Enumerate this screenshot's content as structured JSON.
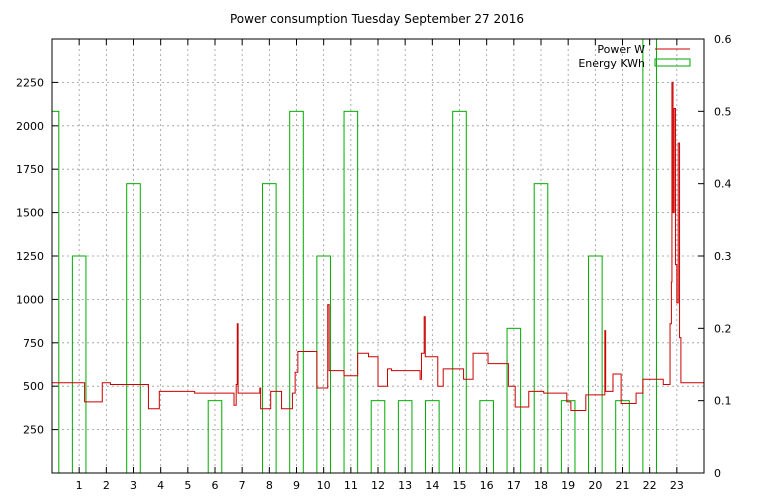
{
  "chart_data": {
    "type": "line",
    "title": "Power consumption Tuesday September 27 2016",
    "xlabel": "",
    "ylabel": "",
    "y2label": "",
    "xlim": [
      0,
      24
    ],
    "x_ticks": [
      1,
      2,
      3,
      4,
      5,
      6,
      7,
      8,
      9,
      10,
      11,
      12,
      13,
      14,
      15,
      16,
      17,
      18,
      19,
      20,
      21,
      22,
      23
    ],
    "ylim": [
      0,
      2500
    ],
    "y_ticks": [
      250,
      500,
      750,
      1000,
      1250,
      1500,
      1750,
      2000,
      2250
    ],
    "y2lim": [
      0,
      0.6
    ],
    "y2_ticks": [
      0,
      0.1,
      0.2,
      0.3,
      0.4,
      0.5,
      0.6
    ],
    "grid": true,
    "legend_position": "top-right",
    "series": [
      {
        "name": "Power W",
        "axis": "left",
        "style": "step-line",
        "color": "#cc0000",
        "points": [
          [
            0,
            520
          ],
          [
            1.2,
            520
          ],
          [
            1.2,
            410
          ],
          [
            1.85,
            410
          ],
          [
            1.85,
            520
          ],
          [
            2.15,
            520
          ],
          [
            2.15,
            510
          ],
          [
            3.55,
            510
          ],
          [
            3.55,
            370
          ],
          [
            3.95,
            370
          ],
          [
            3.95,
            470
          ],
          [
            5.25,
            470
          ],
          [
            5.25,
            460
          ],
          [
            6.7,
            460
          ],
          [
            6.7,
            390
          ],
          [
            6.78,
            390
          ],
          [
            6.78,
            510
          ],
          [
            6.82,
            510
          ],
          [
            6.82,
            860
          ],
          [
            6.85,
            860
          ],
          [
            6.85,
            460
          ],
          [
            7.65,
            460
          ],
          [
            7.65,
            490
          ],
          [
            7.68,
            490
          ],
          [
            7.68,
            370
          ],
          [
            8.05,
            370
          ],
          [
            8.05,
            470
          ],
          [
            8.45,
            470
          ],
          [
            8.45,
            370
          ],
          [
            8.85,
            370
          ],
          [
            8.85,
            460
          ],
          [
            8.95,
            460
          ],
          [
            8.95,
            580
          ],
          [
            9.05,
            580
          ],
          [
            9.05,
            700
          ],
          [
            9.75,
            700
          ],
          [
            9.75,
            490
          ],
          [
            10.15,
            490
          ],
          [
            10.15,
            970
          ],
          [
            10.2,
            970
          ],
          [
            10.2,
            590
          ],
          [
            10.75,
            590
          ],
          [
            10.75,
            560
          ],
          [
            11.25,
            560
          ],
          [
            11.25,
            690
          ],
          [
            11.65,
            690
          ],
          [
            11.65,
            670
          ],
          [
            12.0,
            670
          ],
          [
            12.0,
            500
          ],
          [
            12.35,
            500
          ],
          [
            12.35,
            600
          ],
          [
            12.5,
            600
          ],
          [
            12.5,
            590
          ],
          [
            13.55,
            590
          ],
          [
            13.55,
            540
          ],
          [
            13.6,
            540
          ],
          [
            13.6,
            690
          ],
          [
            13.7,
            690
          ],
          [
            13.7,
            900
          ],
          [
            13.74,
            900
          ],
          [
            13.74,
            670
          ],
          [
            14.2,
            670
          ],
          [
            14.2,
            500
          ],
          [
            14.4,
            500
          ],
          [
            14.4,
            600
          ],
          [
            15.15,
            600
          ],
          [
            15.15,
            540
          ],
          [
            15.5,
            540
          ],
          [
            15.5,
            690
          ],
          [
            16.05,
            690
          ],
          [
            16.05,
            630
          ],
          [
            16.8,
            630
          ],
          [
            16.8,
            500
          ],
          [
            17.05,
            500
          ],
          [
            17.05,
            380
          ],
          [
            17.55,
            380
          ],
          [
            17.55,
            470
          ],
          [
            18.1,
            470
          ],
          [
            18.1,
            460
          ],
          [
            18.95,
            460
          ],
          [
            18.95,
            410
          ],
          [
            19.1,
            410
          ],
          [
            19.1,
            360
          ],
          [
            19.65,
            360
          ],
          [
            19.65,
            450
          ],
          [
            20.35,
            450
          ],
          [
            20.35,
            820
          ],
          [
            20.38,
            820
          ],
          [
            20.38,
            470
          ],
          [
            20.65,
            470
          ],
          [
            20.65,
            570
          ],
          [
            20.95,
            570
          ],
          [
            20.95,
            400
          ],
          [
            21.5,
            400
          ],
          [
            21.5,
            460
          ],
          [
            21.75,
            460
          ],
          [
            21.75,
            540
          ],
          [
            22.5,
            540
          ],
          [
            22.5,
            510
          ],
          [
            22.75,
            510
          ],
          [
            22.75,
            860
          ],
          [
            22.8,
            860
          ],
          [
            22.8,
            1100
          ],
          [
            22.82,
            1100
          ],
          [
            22.82,
            2250
          ],
          [
            22.86,
            2250
          ],
          [
            22.86,
            1500
          ],
          [
            22.9,
            1500
          ],
          [
            22.9,
            2100
          ],
          [
            22.95,
            2100
          ],
          [
            22.95,
            1200
          ],
          [
            23.0,
            1200
          ],
          [
            23.0,
            980
          ],
          [
            23.05,
            980
          ],
          [
            23.05,
            1900
          ],
          [
            23.1,
            1900
          ],
          [
            23.1,
            780
          ],
          [
            23.15,
            780
          ],
          [
            23.15,
            520
          ],
          [
            24,
            520
          ],
          [
            24,
            480
          ]
        ]
      },
      {
        "name": "Energy KWh",
        "axis": "right",
        "style": "bars",
        "color": "#00aa00",
        "bar_width": 0.5,
        "bars": [
          [
            0,
            0.5
          ],
          [
            1,
            0.3
          ],
          [
            2,
            0
          ],
          [
            3,
            0.4
          ],
          [
            4,
            0
          ],
          [
            5,
            0
          ],
          [
            6,
            0.1
          ],
          [
            7,
            0
          ],
          [
            8,
            0.4
          ],
          [
            9,
            0.5
          ],
          [
            10,
            0.3
          ],
          [
            11,
            0.5
          ],
          [
            12,
            0.1
          ],
          [
            13,
            0.1
          ],
          [
            14,
            0.1
          ],
          [
            15,
            0.5
          ],
          [
            16,
            0.1
          ],
          [
            17,
            0.2
          ],
          [
            18,
            0.4
          ],
          [
            19,
            0.1
          ],
          [
            20,
            0.3
          ],
          [
            21,
            0.1
          ],
          [
            22,
            0.6
          ]
        ]
      }
    ]
  },
  "colors": {
    "grid": "#999999",
    "frame": "#000000"
  }
}
